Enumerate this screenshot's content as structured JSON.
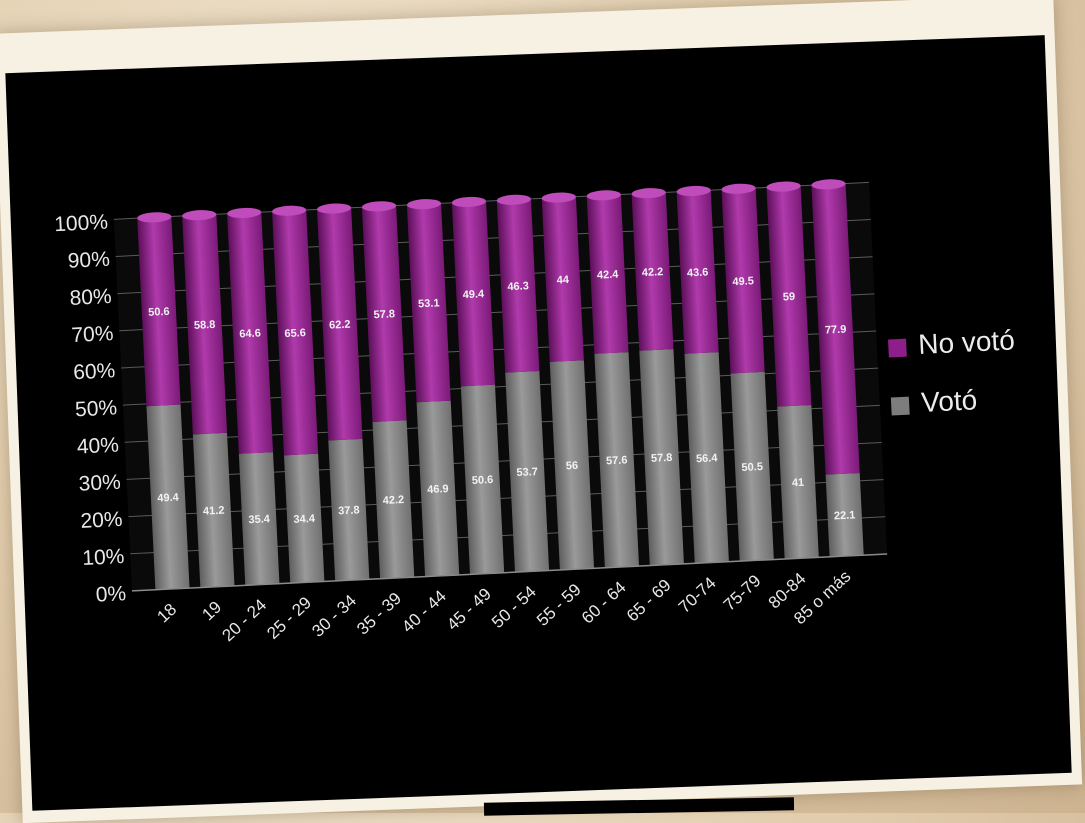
{
  "chart_data": {
    "type": "bar",
    "stacked": true,
    "normalized": true,
    "categories": [
      "18",
      "19",
      "20 - 24",
      "25 - 29",
      "30 - 34",
      "35 - 39",
      "40 - 44",
      "45 - 49",
      "50 - 54",
      "55 - 59",
      "60 - 64",
      "65 - 69",
      "70-74",
      "75-79",
      "80-84",
      "85 o más"
    ],
    "series": [
      {
        "name": "Votó",
        "color": "#7d7d7d",
        "values": [
          49.4,
          41.2,
          35.4,
          34.4,
          37.8,
          42.2,
          46.9,
          50.6,
          53.7,
          56,
          57.6,
          57.8,
          56.4,
          50.5,
          41,
          22.1
        ],
        "labels": [
          "49.4",
          "41.2",
          "35.4",
          "34.4",
          "37.8",
          "42.2",
          "46.9",
          "50.6",
          "53.7",
          "56",
          "57.6",
          "57.8",
          "56.4",
          "50.5",
          "41",
          "22.1"
        ]
      },
      {
        "name": "No votó",
        "color": "#8e1f8a",
        "values": [
          50.6,
          58.8,
          64.6,
          65.6,
          62.2,
          57.8,
          53.1,
          49.4,
          46.3,
          44,
          42.4,
          42.2,
          43.6,
          49.5,
          59,
          77.9
        ],
        "labels": [
          "50.6",
          "58.8",
          "64.6",
          "65.6",
          "62.2",
          "57.8",
          "53.1",
          "49.4",
          "46.3",
          "44",
          "42.4",
          "42.2",
          "43.6",
          "49.5",
          "59",
          "77.9"
        ]
      }
    ],
    "yticks": [
      "0%",
      "10%",
      "20%",
      "30%",
      "40%",
      "50%",
      "60%",
      "70%",
      "80%",
      "90%",
      "100%"
    ],
    "ylim": [
      0,
      100
    ],
    "grid": true,
    "legend_position": "right",
    "legend": [
      {
        "label": "No votó",
        "color": "#8e1f8a"
      },
      {
        "label": "Votó",
        "color": "#7d7d7d"
      }
    ]
  }
}
